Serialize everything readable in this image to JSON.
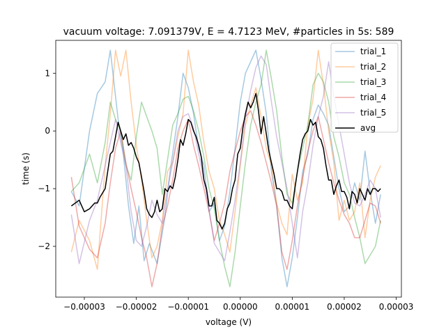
{
  "chart_data": {
    "type": "line",
    "title": "vacuum voltage: 7.091379V, E = 4.7123 MeV, #particles in 5s: 589",
    "xlabel": "voltage (V)",
    "ylabel": "time (s)",
    "xlim": [
      -3.55e-05,
      3.1e-05
    ],
    "ylim": [
      -2.88,
      1.57
    ],
    "x_ticks": [
      -3e-05,
      -2e-05,
      -1e-05,
      0.0,
      1e-05,
      2e-05,
      3e-05
    ],
    "x_tick_labels": [
      "−0.00003",
      "−0.00002",
      "−0.00001",
      "0.00000",
      "0.00001",
      "0.00002",
      "0.00003"
    ],
    "y_ticks": [
      -2,
      -1,
      0,
      1
    ],
    "y_tick_labels": [
      "−2",
      "−1",
      "0",
      "1"
    ],
    "grid": false,
    "legend_position": "top-right",
    "series": [
      {
        "name": "trial_1",
        "color": "#1f77b4",
        "opacity": 0.4,
        "x": [
          -3.25e-05,
          -3.1e-05,
          -2.9e-05,
          -2.75e-05,
          -2.6e-05,
          -2.5e-05,
          -2.35e-05,
          -2.25e-05,
          -2.15e-05,
          -2.05e-05,
          -1.95e-05,
          -1.85e-05,
          -1.75e-05,
          -1.6e-05,
          -1.45e-05,
          -1.35e-05,
          -1.2e-05,
          -1.1e-05,
          -1e-05,
          -9e-06,
          -8e-06,
          -7e-06,
          -6e-06,
          -5e-06,
          -4e-06,
          -3e-06,
          -2e-06,
          -1e-06,
          0.0,
          1e-06,
          2e-06,
          3e-06,
          4e-06,
          5e-06,
          6e-06,
          7e-06,
          8e-06,
          9e-06,
          1e-05,
          1.1e-05,
          1.2e-05,
          1.3e-05,
          1.4e-05,
          1.5e-05,
          1.6e-05,
          1.7e-05,
          1.8e-05,
          1.9e-05,
          2e-05,
          2.1e-05,
          2.2e-05,
          2.3e-05,
          2.4e-05,
          2.5e-05,
          2.6e-05,
          2.7e-05
        ],
        "y": [
          -1.05,
          -1.3,
          0.0,
          0.65,
          0.85,
          1.4,
          0.2,
          -0.4,
          -1.3,
          -1.95,
          -1.3,
          -2.25,
          -1.95,
          -2.3,
          -1.5,
          -0.7,
          0.25,
          1.0,
          0.75,
          0.3,
          -0.3,
          -0.6,
          -1.4,
          -1.25,
          -1.9,
          -1.65,
          -1.05,
          -0.3,
          0.5,
          1.0,
          1.2,
          1.4,
          0.9,
          0.3,
          -0.7,
          -1.3,
          -2.2,
          -2.7,
          -2.2,
          -1.5,
          -0.7,
          -0.4,
          0.2,
          0.45,
          0.3,
          0.1,
          -0.45,
          -1.0,
          -1.4,
          -1.3,
          -0.9,
          -1.2,
          -0.35,
          -1.05,
          -1.6,
          -1.1
        ]
      },
      {
        "name": "trial_2",
        "color": "#ff7f0e",
        "opacity": 0.4,
        "x": [
          -3.25e-05,
          -3.1e-05,
          -2.9e-05,
          -2.75e-05,
          -2.6e-05,
          -2.5e-05,
          -2.4e-05,
          -2.3e-05,
          -2.2e-05,
          -2.1e-05,
          -2e-05,
          -1.9e-05,
          -1.8e-05,
          -1.7e-05,
          -1.6e-05,
          -1.5e-05,
          -1.4e-05,
          -1.3e-05,
          -1.2e-05,
          -1.1e-05,
          -1e-05,
          -9e-06,
          -8e-06,
          -7e-06,
          -6e-06,
          -5e-06,
          -4e-06,
          -3e-06,
          -2e-06,
          -1e-06,
          0.0,
          1e-06,
          2e-06,
          3e-06,
          4e-06,
          5e-06,
          6e-06,
          7e-06,
          8e-06,
          9e-06,
          1e-05,
          1.1e-05,
          1.2e-05,
          1.3e-05,
          1.4e-05,
          1.5e-05,
          1.6e-05,
          1.7e-05,
          1.8e-05,
          1.9e-05,
          2e-05,
          2.1e-05,
          2.2e-05,
          2.3e-05,
          2.4e-05,
          2.5e-05,
          2.6e-05,
          2.7e-05
        ],
        "y": [
          -2.1,
          -1.55,
          -1.9,
          -2.4,
          -0.6,
          0.3,
          1.4,
          0.95,
          1.4,
          0.5,
          -0.25,
          -0.85,
          -1.55,
          -2.2,
          -2.0,
          -1.55,
          -0.7,
          -0.55,
          -0.1,
          0.3,
          1.4,
          0.85,
          0.45,
          -0.2,
          -0.7,
          -1.0,
          -1.55,
          -1.8,
          -2.1,
          -1.4,
          -0.6,
          0.1,
          0.45,
          0.75,
          0.25,
          -0.3,
          -0.6,
          -1.25,
          -1.6,
          -1.8,
          -0.75,
          -1.2,
          -0.9,
          0.1,
          0.55,
          1.4,
          0.8,
          0.0,
          -0.55,
          -1.55,
          -1.2,
          -1.55,
          -1.4,
          -0.9,
          -1.85,
          -1.2,
          -0.8,
          -0.6
        ]
      },
      {
        "name": "trial_3",
        "color": "#2ca02c",
        "opacity": 0.4,
        "x": [
          -3.25e-05,
          -3.1e-05,
          -2.9e-05,
          -2.75e-05,
          -2.6e-05,
          -2.5e-05,
          -2.4e-05,
          -2.3e-05,
          -2.2e-05,
          -2.1e-05,
          -2e-05,
          -1.9e-05,
          -1.8e-05,
          -1.7e-05,
          -1.6e-05,
          -1.5e-05,
          -1.4e-05,
          -1.3e-05,
          -1.2e-05,
          -1.1e-05,
          -1e-05,
          -9e-06,
          -8e-06,
          -7e-06,
          -6e-06,
          -5e-06,
          -4e-06,
          -3e-06,
          -2e-06,
          -1e-06,
          0.0,
          1e-06,
          2e-06,
          3e-06,
          4e-06,
          5e-06,
          6e-06,
          7e-06,
          8e-06,
          9e-06,
          1e-05,
          1.1e-05,
          1.2e-05,
          1.3e-05,
          1.4e-05,
          1.5e-05,
          1.6e-05,
          1.7e-05,
          1.8e-05,
          1.9e-05,
          2e-05,
          2.1e-05,
          2.2e-05,
          2.3e-05,
          2.4e-05,
          2.5e-05,
          2.6e-05,
          2.7e-05
        ],
        "y": [
          -1.05,
          -0.9,
          -0.4,
          -0.9,
          -0.2,
          0.5,
          0.2,
          0.0,
          -0.6,
          -0.85,
          -0.1,
          0.5,
          0.25,
          0.0,
          -0.3,
          -1.1,
          -0.5,
          0.1,
          0.3,
          0.55,
          0.6,
          0.35,
          0.0,
          -0.45,
          -1.0,
          -1.35,
          -1.9,
          -2.35,
          -2.7,
          -2.1,
          -1.3,
          -0.55,
          0.1,
          0.5,
          0.8,
          1.4,
          0.9,
          0.35,
          -0.45,
          -1.1,
          -1.25,
          -0.7,
          -0.3,
          0.1,
          0.8,
          1.0,
          0.85,
          0.5,
          -0.1,
          -0.45,
          -0.9,
          -1.1,
          -1.5,
          -1.85,
          -2.3,
          -2.15,
          -2.0,
          -1.55
        ]
      },
      {
        "name": "trial_4",
        "color": "#d62728",
        "opacity": 0.4,
        "x": [
          -3.25e-05,
          -3.1e-05,
          -2.9e-05,
          -2.75e-05,
          -2.6e-05,
          -2.5e-05,
          -2.4e-05,
          -2.3e-05,
          -2.2e-05,
          -2.1e-05,
          -2e-05,
          -1.9e-05,
          -1.8e-05,
          -1.7e-05,
          -1.6e-05,
          -1.5e-05,
          -1.4e-05,
          -1.3e-05,
          -1.2e-05,
          -1.1e-05,
          -1e-05,
          -9e-06,
          -8e-06,
          -7e-06,
          -6e-06,
          -5e-06,
          -4e-06,
          -3e-06,
          -2e-06,
          -1e-06,
          0.0,
          1e-06,
          2e-06,
          3e-06,
          4e-06,
          5e-06,
          6e-06,
          7e-06,
          8e-06,
          9e-06,
          1e-05,
          1.1e-05,
          1.2e-05,
          1.3e-05,
          1.4e-05,
          1.5e-05,
          1.6e-05,
          1.7e-05,
          1.8e-05,
          1.9e-05,
          2e-05,
          2.1e-05,
          2.2e-05,
          2.3e-05,
          2.4e-05,
          2.5e-05,
          2.6e-05,
          2.7e-05
        ],
        "y": [
          -0.8,
          -1.65,
          -2.05,
          -2.2,
          -1.6,
          -0.9,
          -0.3,
          0.0,
          -0.55,
          -1.0,
          -1.4,
          -1.85,
          -2.2,
          -2.7,
          -2.3,
          -1.65,
          -1.3,
          -0.85,
          -0.3,
          0.0,
          0.2,
          -0.25,
          -0.6,
          -1.0,
          -1.4,
          -1.9,
          -1.6,
          -1.25,
          -0.7,
          -0.35,
          0.0,
          0.25,
          0.35,
          0.1,
          -0.2,
          -0.55,
          -0.9,
          -1.3,
          -2.1,
          -2.4,
          -1.9,
          -1.3,
          -0.8,
          -0.35,
          0.0,
          0.25,
          -0.15,
          -0.55,
          -0.9,
          -1.2,
          -1.45,
          -1.6,
          -1.85,
          -1.85,
          -1.55,
          -1.25,
          -1.3,
          -1.6
        ]
      },
      {
        "name": "trial_5",
        "color": "#9467bd",
        "opacity": 0.4,
        "x": [
          -3.25e-05,
          -3.1e-05,
          -2.9e-05,
          -2.75e-05,
          -2.6e-05,
          -2.5e-05,
          -2.4e-05,
          -2.3e-05,
          -2.2e-05,
          -2.1e-05,
          -2e-05,
          -1.9e-05,
          -1.8e-05,
          -1.7e-05,
          -1.6e-05,
          -1.5e-05,
          -1.4e-05,
          -1.3e-05,
          -1.2e-05,
          -1.1e-05,
          -1e-05,
          -9e-06,
          -8e-06,
          -7e-06,
          -6e-06,
          -5e-06,
          -4e-06,
          -3e-06,
          -2e-06,
          -1e-06,
          0.0,
          1e-06,
          2e-06,
          3e-06,
          4e-06,
          5e-06,
          6e-06,
          7e-06,
          8e-06,
          9e-06,
          1e-05,
          1.1e-05,
          1.2e-05,
          1.3e-05,
          1.4e-05,
          1.5e-05,
          1.6e-05,
          1.7e-05,
          1.8e-05,
          1.9e-05,
          2e-05,
          2.1e-05,
          2.2e-05,
          2.3e-05,
          2.4e-05,
          2.5e-05,
          2.6e-05,
          2.7e-05
        ],
        "y": [
          -1.45,
          -2.3,
          -1.55,
          -1.2,
          -0.6,
          -0.2,
          0.2,
          -0.2,
          -0.6,
          -1.4,
          -1.9,
          -2.0,
          -1.65,
          -1.2,
          -1.45,
          -1.6,
          -1.0,
          -0.55,
          0.0,
          0.25,
          0.3,
          0.05,
          -0.4,
          -0.85,
          -1.35,
          -1.95,
          -2.1,
          -2.25,
          -1.75,
          -1.2,
          -0.55,
          0.2,
          0.7,
          1.1,
          1.3,
          1.15,
          0.5,
          -0.1,
          -0.55,
          -1.0,
          -1.6,
          -2.2,
          -1.4,
          -0.9,
          -0.25,
          0.25,
          0.6,
          1.2,
          0.6,
          0.1,
          -0.4,
          -0.9,
          -1.25,
          -1.3,
          -1.1,
          -0.85,
          -1.0,
          -1.5
        ]
      },
      {
        "name": "avg",
        "color": "#000000",
        "opacity": 1.0,
        "x": [
          -3.25e-05,
          -3.1e-05,
          -3e-05,
          -2.9e-05,
          -2.8e-05,
          -2.75e-05,
          -2.7e-05,
          -2.6e-05,
          -2.55e-05,
          -2.5e-05,
          -2.45e-05,
          -2.4e-05,
          -2.35e-05,
          -2.3e-05,
          -2.25e-05,
          -2.2e-05,
          -2.15e-05,
          -2.1e-05,
          -2.05e-05,
          -2e-05,
          -1.95e-05,
          -1.9e-05,
          -1.85e-05,
          -1.8e-05,
          -1.75e-05,
          -1.7e-05,
          -1.65e-05,
          -1.6e-05,
          -1.55e-05,
          -1.5e-05,
          -1.45e-05,
          -1.4e-05,
          -1.35e-05,
          -1.3e-05,
          -1.25e-05,
          -1.2e-05,
          -1.15e-05,
          -1.1e-05,
          -1.05e-05,
          -1e-05,
          -9.5e-06,
          -9e-06,
          -8.5e-06,
          -8e-06,
          -7.5e-06,
          -7e-06,
          -6.5e-06,
          -6e-06,
          -5.5e-06,
          -5e-06,
          -4.5e-06,
          -4e-06,
          -3.5e-06,
          -3e-06,
          -2.5e-06,
          -2e-06,
          -1.5e-06,
          -1e-06,
          -5e-07,
          0.0,
          5e-07,
          1e-06,
          1.5e-06,
          2e-06,
          2.5e-06,
          3e-06,
          3.5e-06,
          4e-06,
          4.5e-06,
          5e-06,
          5.5e-06,
          6e-06,
          6.5e-06,
          7e-06,
          7.5e-06,
          8e-06,
          8.5e-06,
          9e-06,
          9.5e-06,
          1e-05,
          1.05e-05,
          1.1e-05,
          1.15e-05,
          1.2e-05,
          1.25e-05,
          1.3e-05,
          1.35e-05,
          1.4e-05,
          1.45e-05,
          1.5e-05,
          1.55e-05,
          1.6e-05,
          1.65e-05,
          1.7e-05,
          1.75e-05,
          1.8e-05,
          1.85e-05,
          1.9e-05,
          1.95e-05,
          2e-05,
          2.05e-05,
          2.1e-05,
          2.15e-05,
          2.2e-05,
          2.25e-05,
          2.3e-05,
          2.35e-05,
          2.4e-05,
          2.45e-05,
          2.5e-05,
          2.55e-05,
          2.6e-05,
          2.65e-05,
          2.7e-05
        ],
        "y": [
          -1.3,
          -1.2,
          -1.4,
          -1.35,
          -1.25,
          -1.25,
          -1.15,
          -1.0,
          -0.7,
          -0.4,
          -0.35,
          -0.1,
          0.15,
          0.0,
          -0.15,
          -0.05,
          -0.25,
          -0.2,
          -0.3,
          -0.45,
          -0.55,
          -0.8,
          -1.05,
          -1.35,
          -1.45,
          -1.5,
          -1.4,
          -1.2,
          -1.4,
          -1.35,
          -1.0,
          -1.05,
          -0.95,
          -1.0,
          -0.8,
          -0.5,
          -0.15,
          -0.25,
          -0.05,
          0.2,
          0.15,
          0.0,
          -0.1,
          -0.25,
          -0.45,
          -0.85,
          -1.0,
          -1.3,
          -1.3,
          -1.15,
          -1.55,
          -1.6,
          -1.7,
          -1.6,
          -1.35,
          -1.25,
          -1.0,
          -0.85,
          -0.4,
          -0.3,
          0.05,
          0.3,
          0.5,
          0.4,
          0.5,
          0.65,
          0.35,
          -0.05,
          0.25,
          -0.05,
          -0.35,
          -0.55,
          -0.75,
          -1.0,
          -1.0,
          -1.05,
          -1.2,
          -1.2,
          -1.3,
          -1.35,
          -1.0,
          -0.7,
          -0.4,
          -0.15,
          -0.05,
          0.0,
          0.2,
          0.1,
          0.15,
          -0.1,
          -0.15,
          -0.3,
          -0.6,
          -0.85,
          -0.85,
          -1.1,
          -0.95,
          -0.85,
          -1.05,
          -1.05,
          -1.15,
          -1.35,
          -1.05,
          -1.1,
          -1.25,
          -1.0,
          -1.1,
          -1.2,
          -1.0,
          -1.1,
          -1.0,
          -1.0,
          -1.05,
          -1.0
        ]
      }
    ]
  }
}
